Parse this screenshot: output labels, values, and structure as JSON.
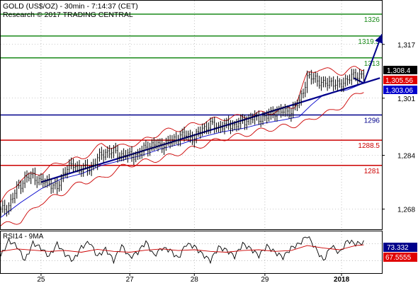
{
  "header": {
    "line1": "GOLD (US$/OZ) - 30min - 7:14:37 (CET)",
    "line2": "Research © 2017 TRADING CENTRAL"
  },
  "colors": {
    "resistance": "#1a8a1a",
    "pivot": "#00008b",
    "support": "#cc0000",
    "price": "#000000",
    "bollinger": "#cc0000",
    "moving_average": "#0000cc",
    "trendline": "#00008b",
    "rsi": "#000000",
    "rsi_ma": "#cc0000"
  },
  "price_badges": {
    "last": "1,308.4",
    "second": "1,305.56",
    "third": "1,303.06"
  },
  "rsi_badges": {
    "rsi": "73.332",
    "ma": "67.5555"
  },
  "chart_data": {
    "type": "line",
    "title": "GOLD (US$/OZ) - 30min",
    "ylim": [
      1262,
      1330
    ],
    "y_ticks": [
      "1,317",
      "1,301",
      "1,284",
      "1,268"
    ],
    "y_tick_values": [
      1317,
      1301,
      1284,
      1268
    ],
    "x_labels": [
      "25",
      "27",
      "28",
      "29",
      "2018"
    ],
    "x_label_positions": [
      20,
      64,
      96,
      131,
      169
    ],
    "x_count": 190,
    "levels": [
      {
        "label": "1326",
        "value": 1326,
        "kind": "resistance"
      },
      {
        "label": "1319.5",
        "value": 1319.5,
        "kind": "resistance"
      },
      {
        "label": "1313",
        "value": 1313,
        "kind": "resistance"
      },
      {
        "label": "1296",
        "value": 1296,
        "kind": "pivot"
      },
      {
        "label": "1288.5",
        "value": 1288.5,
        "kind": "support"
      },
      {
        "label": "1281",
        "value": 1281,
        "kind": "support"
      }
    ],
    "series": [
      {
        "name": "price",
        "x": [
          0,
          4,
          8,
          12,
          16,
          20,
          24,
          28,
          32,
          36,
          40,
          44,
          48,
          52,
          56,
          60,
          64,
          68,
          72,
          76,
          80,
          84,
          88,
          92,
          96,
          100,
          104,
          108,
          112,
          116,
          120,
          124,
          128,
          132,
          136,
          140,
          144,
          148,
          152,
          156,
          160,
          164,
          168,
          172,
          176,
          180
        ],
        "values": [
          1267.5,
          1269,
          1274,
          1277,
          1278,
          1276,
          1276,
          1274,
          1280,
          1281,
          1280,
          1280,
          1283,
          1285,
          1285,
          1284,
          1284,
          1284,
          1286.5,
          1287,
          1287,
          1288,
          1289.5,
          1290,
          1289,
          1292,
          1293,
          1292.5,
          1293,
          1293,
          1294,
          1295,
          1295,
          1295.5,
          1297,
          1297,
          1297,
          1300,
          1307,
          1307,
          1305,
          1306,
          1304.5,
          1307,
          1307.5,
          1308.4
        ]
      },
      {
        "name": "moving_average",
        "x": [
          0,
          10,
          20,
          30,
          40,
          50,
          60,
          70,
          80,
          90,
          100,
          110,
          120,
          130,
          140,
          148,
          154,
          160,
          166,
          172,
          180
        ],
        "values": [
          1265.5,
          1270,
          1274,
          1277,
          1278.5,
          1281,
          1282.5,
          1284,
          1286,
          1287.5,
          1289.5,
          1291,
          1292,
          1293.5,
          1294.5,
          1295.5,
          1299,
          1302,
          1303,
          1303.5,
          1305.5
        ]
      },
      {
        "name": "bollinger_upper",
        "x": [
          0,
          10,
          20,
          30,
          40,
          50,
          60,
          70,
          80,
          90,
          100,
          110,
          120,
          130,
          140,
          146,
          152,
          158,
          164,
          170,
          176,
          180
        ],
        "values": [
          1270,
          1277,
          1279,
          1282,
          1283,
          1287,
          1286.5,
          1288,
          1291,
          1292,
          1294,
          1295,
          1295.5,
          1296.5,
          1297.5,
          1299,
          1308,
          1310,
          1309,
          1308.5,
          1310,
          1310
        ]
      },
      {
        "name": "bollinger_lower",
        "x": [
          0,
          10,
          20,
          30,
          40,
          50,
          60,
          70,
          80,
          90,
          100,
          110,
          120,
          130,
          140,
          146,
          152,
          158,
          164,
          170,
          176,
          180
        ],
        "values": [
          1263,
          1264.5,
          1270,
          1272.5,
          1276,
          1277,
          1280.5,
          1282,
          1283,
          1285,
          1287,
          1289,
          1290,
          1291.5,
          1292.5,
          1293,
          1294,
          1296,
          1297,
          1299,
          1302,
          1303.5
        ]
      },
      {
        "name": "trendline",
        "x": [
          20,
          188
        ],
        "values": [
          1276,
          1307
        ]
      },
      {
        "name": "projection",
        "x": [
          175,
          180,
          189
        ],
        "values": [
          1307,
          1305.5,
          1320
        ]
      },
      {
        "name": "rsi",
        "x": [
          0,
          4,
          8,
          12,
          16,
          20,
          24,
          28,
          32,
          36,
          40,
          44,
          48,
          52,
          56,
          60,
          64,
          68,
          72,
          76,
          80,
          84,
          88,
          92,
          96,
          100,
          104,
          108,
          112,
          116,
          120,
          124,
          128,
          132,
          136,
          140,
          144,
          148,
          152,
          156,
          160,
          164,
          168,
          172,
          176,
          180
        ],
        "values": [
          40,
          78,
          65,
          30,
          72,
          60,
          40,
          70,
          45,
          30,
          62,
          75,
          40,
          58,
          30,
          66,
          38,
          50,
          75,
          42,
          60,
          55,
          35,
          70,
          64,
          45,
          30,
          62,
          55,
          40,
          70,
          58,
          42,
          65,
          50,
          38,
          60,
          70,
          90,
          60,
          30,
          66,
          48,
          78,
          70,
          73.3
        ]
      },
      {
        "name": "rsi_ma",
        "x": [
          0,
          8,
          16,
          24,
          32,
          40,
          48,
          56,
          64,
          72,
          80,
          88,
          96,
          104,
          112,
          120,
          128,
          136,
          144,
          152,
          160,
          168,
          176,
          180
        ],
        "values": [
          52,
          58,
          55,
          52,
          54,
          50,
          57,
          52,
          50,
          55,
          58,
          54,
          56,
          52,
          50,
          54,
          56,
          52,
          54,
          66,
          60,
          56,
          66,
          67.6
        ]
      }
    ]
  }
}
